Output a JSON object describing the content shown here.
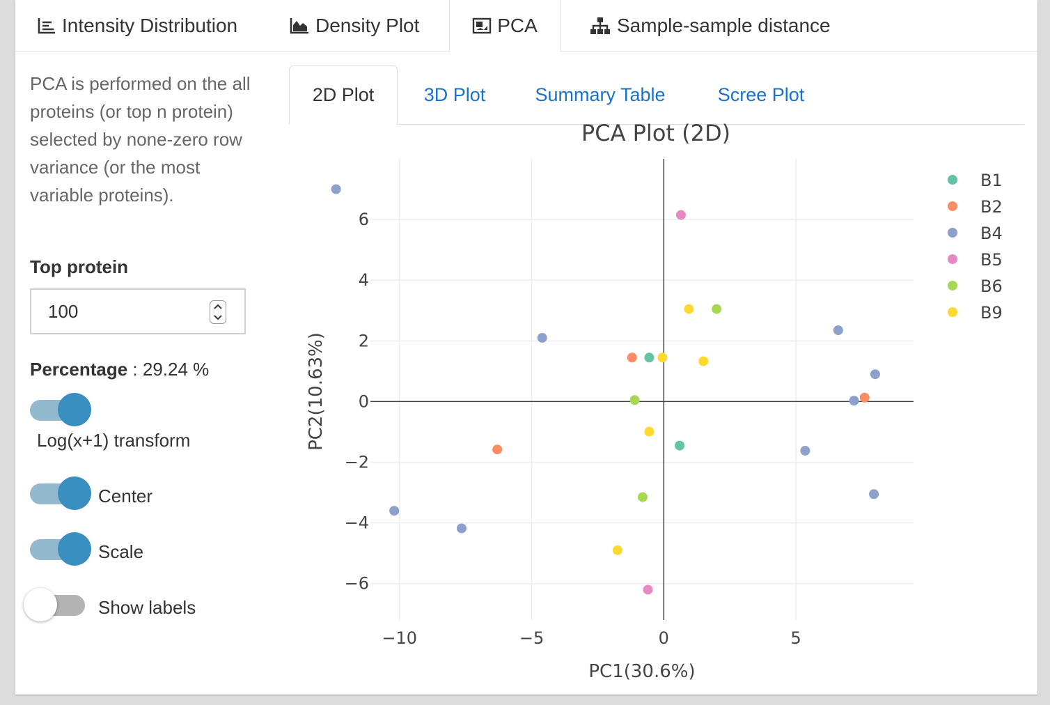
{
  "top_tabs": [
    {
      "label": "Intensity Distribution",
      "icon": "list-chart-icon"
    },
    {
      "label": "Density Plot",
      "icon": "area-chart-icon"
    },
    {
      "label": "PCA",
      "icon": "image-icon"
    },
    {
      "label": "Sample-sample distance",
      "icon": "sitemap-icon"
    }
  ],
  "active_top_tab": "PCA",
  "sidebar": {
    "description": "PCA is performed on the all proteins (or top n protein) selected by none-zero row variance (or the most variable proteins).",
    "top_protein_label": "Top protein",
    "top_protein_value": "100",
    "percentage_label": "Percentage",
    "percentage_value": ": 29.24 %",
    "toggles": [
      {
        "label": "Log(x+1) transform",
        "on": true
      },
      {
        "label": "Center",
        "on": true
      },
      {
        "label": "Scale",
        "on": true
      },
      {
        "label": "Show labels",
        "on": false
      }
    ]
  },
  "sub_tabs": [
    "2D Plot",
    "3D Plot",
    "Summary Table",
    "Scree Plot"
  ],
  "active_sub_tab": "2D Plot",
  "colors": {
    "accent": "#3a8fc1",
    "link": "#1a73c9"
  },
  "chart_data": {
    "type": "scatter",
    "title": "PCA Plot (2D)",
    "xlabel": "PC1(30.6%)",
    "ylabel": "PC2(10.63%)",
    "xlim": [
      -11.1,
      9.45
    ],
    "ylim": [
      -7.2,
      8.0
    ],
    "xticks": [
      -10,
      -5,
      0,
      5
    ],
    "yticks": [
      -6,
      -4,
      -2,
      0,
      2,
      4,
      6
    ],
    "legend_position": "top-right",
    "series": [
      {
        "name": "B1",
        "color": "#66c2a5",
        "points": [
          [
            -0.55,
            1.45
          ],
          [
            0.6,
            -1.45
          ]
        ]
      },
      {
        "name": "B2",
        "color": "#fc8d62",
        "points": [
          [
            -1.2,
            1.45
          ],
          [
            -6.3,
            -1.58
          ],
          [
            7.6,
            0.13
          ]
        ]
      },
      {
        "name": "B4",
        "color": "#8da0cb",
        "points": [
          [
            -12.4,
            7.0
          ],
          [
            -4.6,
            2.1
          ],
          [
            6.6,
            2.35
          ],
          [
            8.0,
            0.9
          ],
          [
            7.2,
            0.03
          ],
          [
            5.35,
            -1.62
          ],
          [
            -10.2,
            -3.6
          ],
          [
            -7.65,
            -4.18
          ],
          [
            7.95,
            -3.05
          ]
        ]
      },
      {
        "name": "B5",
        "color": "#e78ac3",
        "points": [
          [
            0.65,
            6.15
          ],
          [
            -0.6,
            -6.2
          ]
        ]
      },
      {
        "name": "B6",
        "color": "#a6d854",
        "points": [
          [
            2.0,
            3.05
          ],
          [
            -1.1,
            0.05
          ],
          [
            -0.8,
            -3.15
          ]
        ]
      },
      {
        "name": "B9",
        "color": "#ffd92f",
        "points": [
          [
            0.95,
            3.05
          ],
          [
            -0.05,
            1.45
          ],
          [
            1.5,
            1.33
          ],
          [
            -0.55,
            -0.99
          ],
          [
            -1.75,
            -4.9
          ]
        ]
      }
    ]
  }
}
